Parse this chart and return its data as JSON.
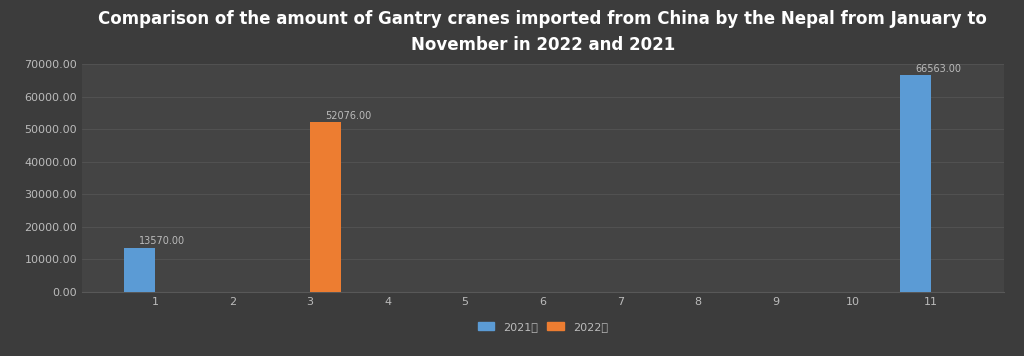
{
  "title": "Comparison of the amount of Gantry cranes imported from China by the Nepal from January to\nNovember in 2022 and 2021",
  "months": [
    1,
    2,
    3,
    4,
    5,
    6,
    7,
    8,
    9,
    10,
    11
  ],
  "values_2021": [
    13570.0,
    0,
    0,
    0,
    0,
    0,
    0,
    0,
    0,
    0,
    66563.0
  ],
  "values_2022": [
    0,
    0,
    52076.0,
    0,
    0,
    0,
    0,
    0,
    0,
    0,
    0
  ],
  "color_2021": "#5B9BD5",
  "color_2022": "#ED7D31",
  "background_color": "#3C3C3C",
  "axes_background": "#444444",
  "grid_color": "#585858",
  "text_color": "#FFFFFF",
  "label_color": "#BBBBBB",
  "legend_2021": "2021年",
  "legend_2022": "2022年",
  "ylim": [
    0,
    70000
  ],
  "yticks": [
    0,
    10000,
    20000,
    30000,
    40000,
    50000,
    60000,
    70000
  ],
  "bar_width": 0.4,
  "title_fontsize": 12,
  "tick_fontsize": 8,
  "annotation_fontsize": 7
}
